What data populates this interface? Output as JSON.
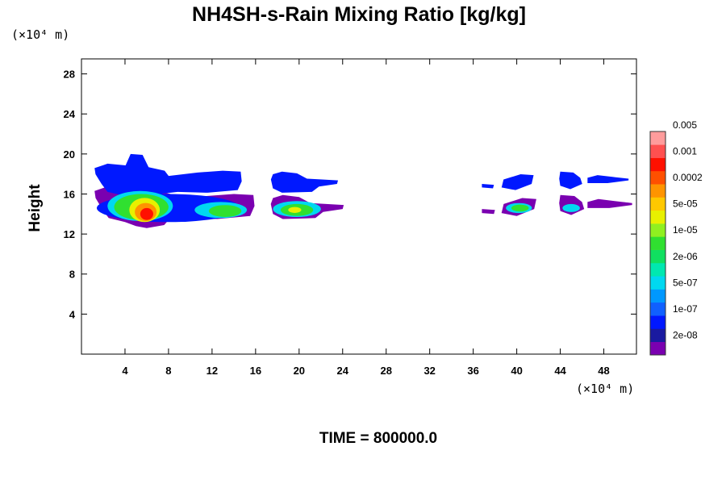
{
  "chart_data": {
    "type": "heatmap",
    "title": "NH4SH-s-Rain Mixing Ratio [kg/kg]",
    "ylabel": "Height",
    "x_unit": "(×10⁴ m)",
    "y_unit": "(×10⁴ m)",
    "time_label": "TIME = 800000.0",
    "xlim": [
      0,
      51
    ],
    "ylim": [
      0,
      29.5
    ],
    "x_ticks": [
      4,
      8,
      12,
      16,
      20,
      24,
      28,
      32,
      36,
      40,
      44,
      48
    ],
    "y_ticks": [
      4,
      8,
      12,
      16,
      20,
      24,
      28
    ],
    "legend": {
      "placement": "right",
      "labels": [
        "2e-08",
        "1e-07",
        "5e-07",
        "2e-06",
        "1e-05",
        "5e-05",
        "0.0002",
        "0.001",
        "0.005"
      ],
      "colors": [
        "#7a00b0",
        "#1a1aa0",
        "#0018ff",
        "#1060ff",
        "#0098ff",
        "#00d8f0",
        "#00e8b0",
        "#10e060",
        "#30e030",
        "#90f020",
        "#e8f000",
        "#ffc800",
        "#ff9400",
        "#ff5000",
        "#ff1000",
        "#ff5050",
        "#ff9c9c"
      ]
    },
    "cloud_regions": [
      {
        "name": "cloud-1",
        "outline": [
          [
            1.2,
            16.3
          ],
          [
            2.5,
            16.8
          ],
          [
            4.3,
            16.6
          ],
          [
            4.8,
            17.9
          ],
          [
            6.0,
            17.8
          ],
          [
            6.6,
            16.4
          ],
          [
            8.2,
            16.0
          ],
          [
            8.6,
            15.4
          ],
          [
            11.5,
            15.8
          ],
          [
            14.0,
            16.0
          ],
          [
            15.8,
            15.9
          ],
          [
            15.9,
            14.8
          ],
          [
            15.5,
            13.8
          ],
          [
            12.5,
            13.5
          ],
          [
            9.5,
            13.6
          ],
          [
            8.0,
            13.4
          ],
          [
            7.6,
            12.9
          ],
          [
            6.0,
            12.6
          ],
          [
            5.0,
            12.8
          ],
          [
            4.0,
            13.2
          ],
          [
            2.5,
            13.6
          ],
          [
            1.9,
            14.5
          ],
          [
            1.3,
            15.6
          ]
        ],
        "levels": [
          {
            "color": "#0018ff",
            "cx": 8.0,
            "cy": 14.6,
            "rx": 6.6,
            "ry": 1.4
          },
          {
            "color": "#00d8f0",
            "cx": 5.4,
            "cy": 14.8,
            "rx": 3.0,
            "ry": 1.5
          },
          {
            "color": "#30e030",
            "cx": 5.5,
            "cy": 14.7,
            "rx": 2.5,
            "ry": 1.3
          },
          {
            "color": "#00d8f0",
            "cx": 12.8,
            "cy": 14.4,
            "rx": 2.4,
            "ry": 0.8
          },
          {
            "color": "#30e030",
            "cx": 13.2,
            "cy": 14.3,
            "rx": 1.5,
            "ry": 0.6
          },
          {
            "color": "#e8f000",
            "cx": 5.8,
            "cy": 14.4,
            "rx": 1.4,
            "ry": 1.2
          },
          {
            "color": "#ff9400",
            "cx": 5.9,
            "cy": 14.2,
            "rx": 1.0,
            "ry": 0.9
          },
          {
            "color": "#ff1000",
            "cx": 6.0,
            "cy": 14.0,
            "rx": 0.6,
            "ry": 0.6
          }
        ]
      },
      {
        "name": "cloud-2",
        "outline": [
          [
            17.6,
            15.6
          ],
          [
            18.5,
            15.9
          ],
          [
            20.0,
            15.7
          ],
          [
            21.0,
            15.1
          ],
          [
            22.5,
            15.0
          ],
          [
            24.1,
            14.9
          ],
          [
            24.0,
            14.5
          ],
          [
            22.2,
            14.2
          ],
          [
            21.5,
            13.6
          ],
          [
            18.5,
            13.5
          ],
          [
            17.6,
            14.0
          ],
          [
            17.4,
            15.0
          ]
        ],
        "levels": [
          {
            "color": "#00d8f0",
            "cx": 19.8,
            "cy": 14.5,
            "rx": 2.2,
            "ry": 0.8
          },
          {
            "color": "#30e030",
            "cx": 19.8,
            "cy": 14.4,
            "rx": 1.5,
            "ry": 0.6
          },
          {
            "color": "#e8f000",
            "cx": 19.6,
            "cy": 14.4,
            "rx": 0.6,
            "ry": 0.3
          }
        ]
      },
      {
        "name": "cloud-3",
        "outline": [
          [
            36.8,
            14.5
          ],
          [
            38.0,
            14.4
          ],
          [
            37.9,
            14.0
          ],
          [
            36.8,
            14.1
          ]
        ],
        "levels": []
      },
      {
        "name": "cloud-4",
        "outline": [
          [
            38.8,
            15.0
          ],
          [
            40.5,
            15.6
          ],
          [
            41.8,
            15.5
          ],
          [
            41.6,
            14.5
          ],
          [
            40.0,
            13.8
          ],
          [
            38.6,
            14.1
          ]
        ],
        "levels": [
          {
            "color": "#00d8f0",
            "cx": 40.2,
            "cy": 14.6,
            "rx": 1.2,
            "ry": 0.5
          },
          {
            "color": "#30e030",
            "cx": 40.3,
            "cy": 14.6,
            "rx": 0.8,
            "ry": 0.35
          }
        ]
      },
      {
        "name": "cloud-5",
        "outline": [
          [
            44.0,
            15.9
          ],
          [
            45.3,
            15.8
          ],
          [
            46.0,
            15.2
          ],
          [
            46.2,
            14.5
          ],
          [
            45.0,
            13.9
          ],
          [
            44.0,
            14.3
          ],
          [
            43.9,
            15.1
          ]
        ],
        "levels": [
          {
            "color": "#00d8f0",
            "cx": 45.0,
            "cy": 14.6,
            "rx": 0.8,
            "ry": 0.4
          }
        ]
      },
      {
        "name": "cloud-6",
        "outline": [
          [
            46.5,
            15.2
          ],
          [
            47.5,
            15.5
          ],
          [
            49.0,
            15.3
          ],
          [
            50.6,
            15.1
          ],
          [
            50.6,
            14.9
          ],
          [
            48.5,
            14.6
          ],
          [
            46.5,
            14.6
          ]
        ],
        "levels": [
          {
            "color": "#7a00b0",
            "cx": 48.6,
            "cy": 15.0,
            "rx": 2.0,
            "ry": 0.22
          }
        ]
      }
    ]
  }
}
